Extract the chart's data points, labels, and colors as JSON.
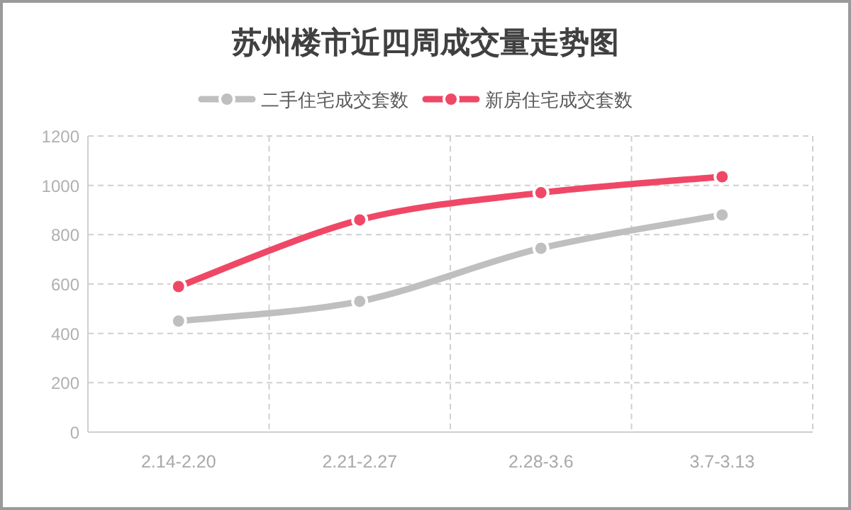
{
  "chart_data": {
    "type": "line",
    "title": "苏州楼市近四周成交量走势图",
    "categories": [
      "2.14-2.20",
      "2.21-2.27",
      "2.28-3.6",
      "3.7-3.13"
    ],
    "series": [
      {
        "name": "二手住宅成交套数",
        "color": "#bfbfbf",
        "values": [
          450,
          530,
          745,
          880
        ]
      },
      {
        "name": "新房住宅成交套数",
        "color": "#ef4866",
        "values": [
          590,
          860,
          970,
          1035
        ]
      }
    ],
    "ylim": [
      0,
      1200
    ],
    "yticks": [
      0,
      200,
      400,
      600,
      800,
      1000,
      1200
    ],
    "grid": true,
    "legend": "top",
    "marker": "circle",
    "line_style": "solid"
  }
}
